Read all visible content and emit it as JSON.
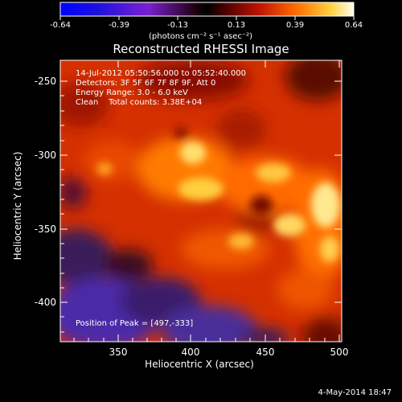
{
  "colorbar": {
    "ticks": [
      "-0.64",
      "-0.39",
      "-0.13",
      "0.13",
      "0.39",
      "0.64"
    ],
    "units": "(photons cm⁻² s⁻¹ asec⁻²)"
  },
  "plot": {
    "title": "Reconstructed RHESSI Image",
    "annotations": [
      "14-Jul-2012 05:50:56.000 to 05:52:40.000",
      "Detectors: 3F 5F 6F 7F 8F 9F, Att 0",
      "Energy Range: 3.0 - 6.0 keV",
      "Clean    Total counts: 3.38E+04"
    ],
    "peak": "Position of Peak = [497,-333]",
    "x_ticks": [
      "350",
      "400",
      "450",
      "500"
    ],
    "y_ticks": [
      "-250",
      "-300",
      "-350",
      "-400"
    ],
    "xlabel": "Heliocentric X (arcsec)",
    "ylabel": "Heliocentric Y (arcsec)"
  },
  "footer": {
    "timestamp": "4-May-2014 18:47"
  },
  "colors": {
    "background": "#000000",
    "colormap": [
      "#0000ff",
      "#4c2aa8",
      "#5a2870",
      "#2a0a1a",
      "#8a0000",
      "#d32800",
      "#ff7a00",
      "#ffd74a",
      "#ffffd0"
    ]
  }
}
